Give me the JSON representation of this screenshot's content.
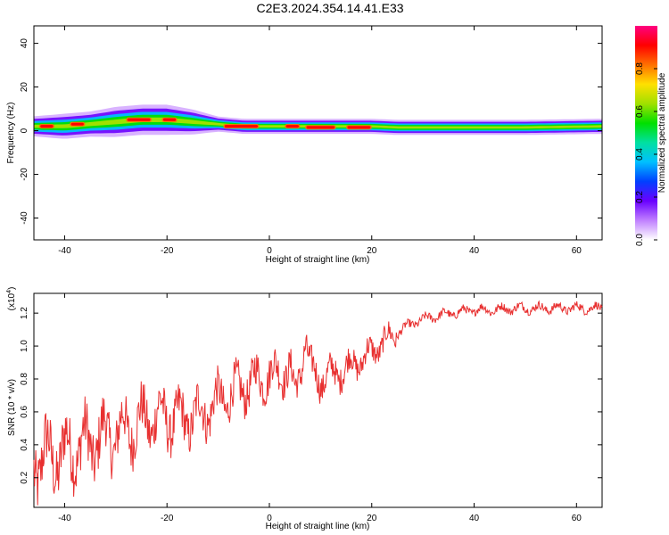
{
  "title": "C2E3.2024.354.14.41.E33",
  "chart_data": [
    {
      "type": "heatmap",
      "xlabel": "Height of straight line (km)",
      "ylabel": "Frequency (Hz)",
      "xlim": [
        -46,
        65
      ],
      "ylim": [
        -50,
        48
      ],
      "xticks": [
        "-40",
        "-20",
        "0",
        "20",
        "40",
        "60"
      ],
      "yticks": [
        "-40",
        "-20",
        "0",
        "20",
        "40"
      ],
      "colorbar": {
        "label": "Normalized spectral amplitude",
        "range": [
          0,
          1
        ],
        "ticks": [
          "0.0",
          "0.2",
          "0.4",
          "0.6",
          "0.8"
        ],
        "colors": [
          "#ffffff",
          "#c080ff",
          "#6a00ff",
          "#0040ff",
          "#00c0ff",
          "#00e0a0",
          "#00e000",
          "#a0e000",
          "#ffe000",
          "#ff7000",
          "#ff0000",
          "#ff0080"
        ]
      },
      "band": {
        "x": [
          -46,
          -40,
          -35,
          -30,
          -25,
          -20,
          -15,
          -10,
          -5,
          0,
          5,
          10,
          15,
          20,
          25,
          30,
          40,
          50,
          65
        ],
        "center_hz": [
          2,
          2,
          3,
          4,
          5,
          5,
          4,
          3,
          2,
          2,
          2,
          2,
          2,
          2,
          1.5,
          1.5,
          1.5,
          1.5,
          2
        ],
        "halfwidth_hz": [
          4,
          5,
          5,
          6,
          6,
          6,
          5,
          3,
          3,
          3,
          3,
          3,
          3,
          3,
          3,
          3,
          3,
          3,
          3
        ]
      },
      "peak_segments": [
        {
          "x": [
            -45,
            -42
          ],
          "freq_hz": 2
        },
        {
          "x": [
            -39,
            -36
          ],
          "freq_hz": 3
        },
        {
          "x": [
            -28,
            -23
          ],
          "freq_hz": 5
        },
        {
          "x": [
            -21,
            -18
          ],
          "freq_hz": 5
        },
        {
          "x": [
            -9,
            -2
          ],
          "freq_hz": 2
        },
        {
          "x": [
            3,
            6
          ],
          "freq_hz": 2
        },
        {
          "x": [
            7,
            13
          ],
          "freq_hz": 1.5
        },
        {
          "x": [
            15,
            20
          ],
          "freq_hz": 1.5
        }
      ]
    },
    {
      "type": "line",
      "xlabel": "Height of straight line (km)",
      "ylabel": "SNR (10 * v/v)",
      "y_multiplier": "(x10",
      "y_multiplier_exp": "4",
      "multiplier_suffix": ")",
      "xlim": [
        -46,
        65
      ],
      "ylim": [
        0.02,
        1.32
      ],
      "xticks": [
        "-40",
        "-20",
        "0",
        "20",
        "40",
        "60"
      ],
      "yticks": [
        "0.2",
        "0.4",
        "0.6",
        "0.8",
        "1.0",
        "1.2"
      ],
      "color": "#e83030",
      "series": [
        {
          "x": [
            -46,
            -44,
            -42,
            -40,
            -38,
            -36,
            -34,
            -32,
            -30,
            -28,
            -26,
            -24,
            -22,
            -20,
            -18,
            -16,
            -14,
            -12,
            -10,
            -8,
            -6,
            -4,
            -2,
            0,
            2,
            4,
            5,
            6,
            7,
            8,
            10,
            12,
            14,
            16,
            18,
            20,
            22,
            25,
            28,
            32,
            36,
            40,
            44,
            48,
            52,
            56,
            60,
            65
          ],
          "y": [
            0.3,
            0.32,
            0.33,
            0.35,
            0.38,
            0.4,
            0.42,
            0.45,
            0.47,
            0.49,
            0.52,
            0.55,
            0.57,
            0.57,
            0.55,
            0.56,
            0.58,
            0.62,
            0.66,
            0.7,
            0.73,
            0.77,
            0.8,
            0.82,
            0.84,
            0.86,
            0.7,
            0.85,
            1.05,
            0.85,
            0.8,
            0.82,
            0.85,
            0.88,
            0.92,
            0.96,
            1.02,
            1.08,
            1.14,
            1.18,
            1.2,
            1.22,
            1.22,
            1.23,
            1.23,
            1.23,
            1.23,
            1.23
          ]
        }
      ]
    }
  ]
}
